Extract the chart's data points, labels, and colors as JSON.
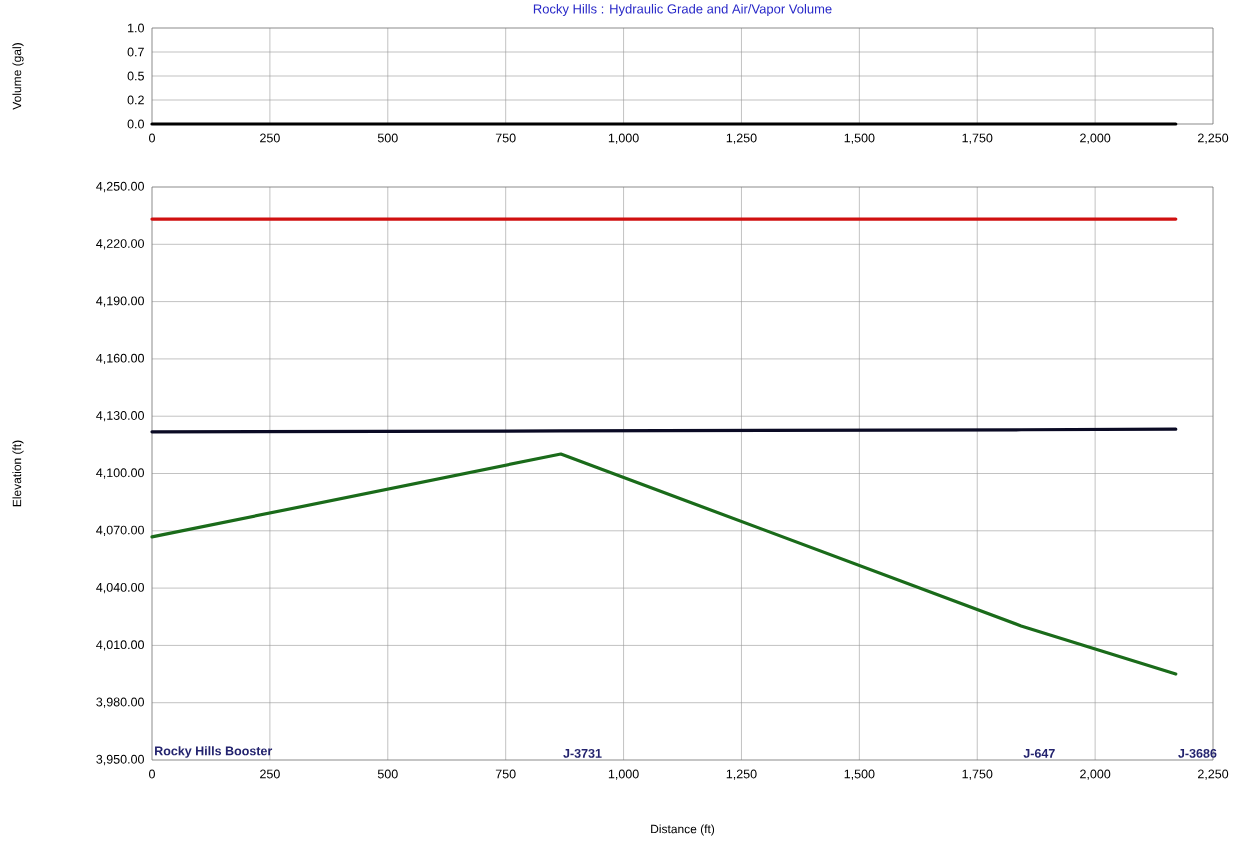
{
  "chart_data": [
    {
      "type": "line",
      "title": "Rocky Hills : Hydraulic Grade and Air/Vapor Volume",
      "ylabel": "Volume (gal)",
      "series": [
        {
          "color": "#000000",
          "x": [
            0,
            2171
          ],
          "values": [
            0,
            0
          ]
        }
      ],
      "xlim": [
        0,
        2250
      ],
      "xticks": [
        0,
        250,
        500,
        750,
        {
          "value": 1000,
          "label": "1,000"
        },
        {
          "value": 1250,
          "label": "1,250"
        },
        {
          "value": 1500,
          "label": "1,500"
        },
        {
          "value": 1750,
          "label": "1,750"
        },
        {
          "value": 2000,
          "label": "2,000"
        },
        {
          "value": 2250,
          "label": "2,250"
        }
      ],
      "ylim": [
        0,
        1
      ],
      "yticks": [
        {
          "value": 0,
          "label": "0.0"
        },
        {
          "value": 0.25,
          "label": "0.2"
        },
        {
          "value": 0.5,
          "label": "0.5"
        },
        {
          "value": 0.75,
          "label": "0.7"
        },
        {
          "value": 1,
          "label": "1.0"
        }
      ],
      "grid": true
    },
    {
      "type": "line",
      "xlabel": "Distance (ft)",
      "ylabel": "Elevation (ft)",
      "series": [
        {
          "color": "#d01010",
          "x": [
            0,
            2171
          ],
          "values": [
            4233.2,
            4233.2
          ]
        },
        {
          "color": "#0a0a24",
          "x": [
            0,
            867,
            1843,
            2171
          ],
          "values": [
            4121.8,
            4122.3,
            4122.9,
            4123.2
          ]
        },
        {
          "color": "#1a6b1a",
          "x": [
            0,
            867,
            1843,
            2171
          ],
          "values": [
            4066.8,
            4110.2,
            4020.2,
            3995.0
          ]
        }
      ],
      "xlim": [
        0,
        2250
      ],
      "xticks": [
        0,
        250,
        500,
        750,
        {
          "value": 1000,
          "label": "1,000"
        },
        {
          "value": 1250,
          "label": "1,250"
        },
        {
          "value": 1500,
          "label": "1,500"
        },
        {
          "value": 1750,
          "label": "1,750"
        },
        {
          "value": 2000,
          "label": "2,000"
        },
        {
          "value": 2250,
          "label": "2,250"
        }
      ],
      "ylim": [
        3950,
        4250
      ],
      "yticks": [
        {
          "value": 3950,
          "label": "3,950.00"
        },
        {
          "value": 3980,
          "label": "3,980.00"
        },
        {
          "value": 4010,
          "label": "4,010.00"
        },
        {
          "value": 4040,
          "label": "4,040.00"
        },
        {
          "value": 4070,
          "label": "4,070.00"
        },
        {
          "value": 4100,
          "label": "4,100.00"
        },
        {
          "value": 4130,
          "label": "4,130.00"
        },
        {
          "value": 4160,
          "label": "4,160.00"
        },
        {
          "value": 4190,
          "label": "4,190.00"
        },
        {
          "value": 4220,
          "label": "4,220.00"
        },
        {
          "value": 4250,
          "label": "4,250.00"
        }
      ],
      "grid": true,
      "annotations": [
        "Rocky Hills Booster",
        "J-3731",
        "J-647",
        "J-3686"
      ]
    }
  ]
}
